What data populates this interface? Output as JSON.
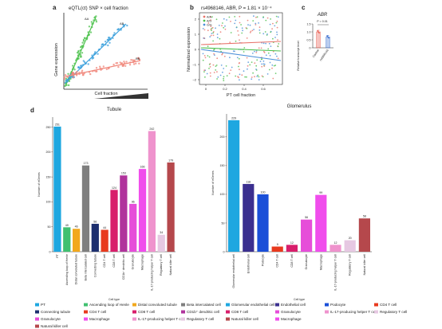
{
  "panels": {
    "a": {
      "letter": "a",
      "title": "eQTL(ct) SNP × cell fraction",
      "xlabel": "Cell fraction",
      "ylabel": "Gene expression",
      "series": [
        {
          "name": "AA",
          "color": "#4cc24c"
        },
        {
          "name": "AB",
          "color": "#3ba0dc"
        },
        {
          "name": "BB",
          "color": "#f0867a"
        }
      ]
    },
    "b": {
      "letter": "b",
      "title": "rs4968146, ABR, P = 1.81 × 10⁻⁴",
      "xlabel": "PT cell fraction",
      "ylabel": "Normalized expression",
      "xticks": [
        "0",
        "0.2",
        "0.4",
        "0.6"
      ],
      "yticks": [
        "2",
        "1",
        "0",
        "−1",
        "−2"
      ],
      "legend": [
        {
          "name": "A/A",
          "color": "#e8736a"
        },
        {
          "name": "A/G",
          "color": "#4cbf4c"
        },
        {
          "name": "G/G",
          "color": "#4a8fd8"
        }
      ]
    },
    "c": {
      "letter": "c",
      "title": "ABR",
      "pval": "P = 0.01",
      "ylabel": "Relative transcript level",
      "yticks": [
        "1.5",
        "1.0",
        "0.5",
        "0"
      ],
      "categories": [
        "Control",
        "rs4968146"
      ],
      "values": [
        1.0,
        0.68
      ],
      "colors": [
        "#e8574a",
        "#3a6fd0"
      ]
    },
    "d": {
      "letter": "d"
    }
  },
  "chart_data": [
    {
      "type": "bar",
      "title": "Tubule",
      "ylabel": "Number of eGenes",
      "xlabel": "Cell type",
      "ylim": [
        0,
        270
      ],
      "categories": [
        "PT",
        "Ascending loop of Henle",
        "Distal convoluted tubule",
        "Beta intercalated cell",
        "Connecting tubule",
        "CD4 T cell",
        "CD8 T cell",
        "CD1b+ dendritic cell",
        "Granulocyte",
        "Macrophage",
        "IL-17-producing helper T cell",
        "Regulatory T cell",
        "Natural killer cell"
      ],
      "tick_labels": [
        "PT",
        "Ascending loop of Henle",
        "Distal convoluted tubule",
        "Beta intercalated cell",
        "Connecting tubule",
        "CD4 T cell",
        "CD8 T cell",
        "CD1b⁺ dendritic cell",
        "Granulocyte",
        "Macrophage",
        "IL-17-producing helper T cell",
        "Regulatory T cell",
        "Natural killer cell"
      ],
      "values": [
        251,
        49,
        46,
        173,
        56,
        44,
        124,
        153,
        96,
        166,
        242,
        34,
        179
      ],
      "colors": [
        "#1ea7e0",
        "#40c070",
        "#f2a81d",
        "#7f7f7f",
        "#1d2f6f",
        "#e83a1e",
        "#d81e6b",
        "#b0339c",
        "#e64dd9",
        "#f04dec",
        "#ef93cd",
        "#e6c8e2",
        "#b5484c"
      ]
    },
    {
      "type": "bar",
      "title": "Glomerulus",
      "ylabel": "Number of eGenes",
      "xlabel": "Cell type",
      "ylim": [
        0,
        240
      ],
      "categories": [
        "Glomerular endothelial cell",
        "Endothelial cell",
        "Podocyte",
        "CD4 T cell",
        "CD8 T cell",
        "Granulocyte",
        "Macrophage",
        "IL-17-producing helper T cell",
        "Regulatory T cell",
        "Natural killer cell"
      ],
      "values": [
        229,
        118,
        100,
        9,
        12,
        56,
        99,
        12,
        20,
        58
      ],
      "colors": [
        "#1ea7e0",
        "#3b2f8f",
        "#1a4fd8",
        "#e83a1e",
        "#d81e6b",
        "#e64dd9",
        "#f04dec",
        "#ef93cd",
        "#e6c8e2",
        "#b5484c"
      ]
    }
  ],
  "legend_tubule": [
    {
      "label": "PT",
      "color": "#1ea7e0"
    },
    {
      "label": "Ascending loop of Henle",
      "color": "#40c070"
    },
    {
      "label": "Distal convoluted tubule",
      "color": "#f2a81d"
    },
    {
      "label": "Beta intercalated cell",
      "color": "#7f7f7f"
    },
    {
      "label": "Connecting tubule",
      "color": "#1d2f6f"
    },
    {
      "label": "CD4 T cell",
      "color": "#e83a1e"
    },
    {
      "label": "CD8 T cell",
      "color": "#d81e6b"
    },
    {
      "label": "CD1b⁺ dendritic cell",
      "color": "#b0339c"
    },
    {
      "label": "Granulocyte",
      "color": "#e64dd9"
    },
    {
      "label": "Macrophage",
      "color": "#f04dec"
    },
    {
      "label": "IL-17-producing helper T cell",
      "color": "#ef93cd"
    },
    {
      "label": "Regulatory T cell",
      "color": "#e6c8e2"
    },
    {
      "label": "Natural killer cell",
      "color": "#b5484c"
    }
  ],
  "legend_glomerulus": [
    {
      "label": "Glomerular endothelial cell",
      "color": "#1ea7e0"
    },
    {
      "label": "Endothelial cell",
      "color": "#3b2f8f"
    },
    {
      "label": "Podocyte",
      "color": "#1a4fd8"
    },
    {
      "label": "CD4 T cell",
      "color": "#e83a1e"
    },
    {
      "label": "CD8 T cell",
      "color": "#d81e6b"
    },
    {
      "label": "Granulocyte",
      "color": "#e64dd9"
    },
    {
      "label": "IL-17-producing helper T cell",
      "color": "#ef93cd"
    },
    {
      "label": "Regulatory T cell",
      "color": "#e6c8e2"
    },
    {
      "label": "Natural killer cell",
      "color": "#b5484c"
    },
    {
      "label": "Macrophage",
      "color": "#f04dec"
    }
  ]
}
